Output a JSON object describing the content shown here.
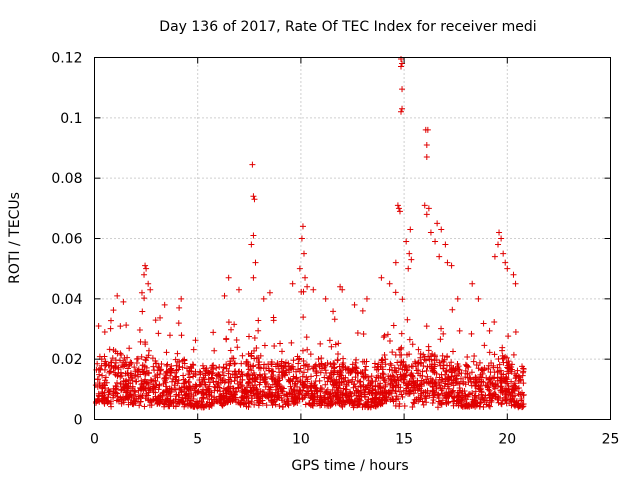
{
  "chart_data": {
    "type": "scatter",
    "title": "Day 136 of 2017, Rate Of TEC Index for receiver medi",
    "xlabel": "GPS time / hours",
    "ylabel": "ROTI / TECUs",
    "xlim": [
      0,
      25
    ],
    "ylim": [
      0,
      0.12
    ],
    "xticks": [
      0,
      5,
      10,
      15,
      20,
      25
    ],
    "yticks": [
      0,
      0.02,
      0.04,
      0.06,
      0.08,
      0.1,
      0.12
    ],
    "xtick_labels": [
      "0",
      "5",
      "10",
      "15",
      "20",
      "25"
    ],
    "ytick_labels": [
      "0",
      "0.02",
      "0.04",
      "0.06",
      "0.08",
      "0.1",
      "0.12"
    ],
    "grid": true,
    "legend": "none",
    "marker": "plus",
    "color": "#e00000",
    "series": [
      {
        "points": [
          [
            7.65,
            0.0845
          ],
          [
            7.7,
            0.074
          ],
          [
            7.75,
            0.073
          ],
          [
            7.7,
            0.061
          ],
          [
            7.6,
            0.058
          ],
          [
            7.8,
            0.052
          ],
          [
            7.7,
            0.047
          ],
          [
            10.1,
            0.064
          ],
          [
            10.05,
            0.06
          ],
          [
            10.15,
            0.055
          ],
          [
            9.95,
            0.05
          ],
          [
            10.2,
            0.047
          ],
          [
            10.3,
            0.044
          ],
          [
            14.85,
            0.1195
          ],
          [
            14.9,
            0.118
          ],
          [
            14.85,
            0.117
          ],
          [
            14.9,
            0.1095
          ],
          [
            14.9,
            0.103
          ],
          [
            14.85,
            0.102
          ],
          [
            14.7,
            0.071
          ],
          [
            14.75,
            0.07
          ],
          [
            14.8,
            0.069
          ],
          [
            15.3,
            0.063
          ],
          [
            15.1,
            0.059
          ],
          [
            15.25,
            0.055
          ],
          [
            15.35,
            0.053
          ],
          [
            14.6,
            0.052
          ],
          [
            15.2,
            0.05
          ],
          [
            16.05,
            0.096
          ],
          [
            16.15,
            0.096
          ],
          [
            16.1,
            0.091
          ],
          [
            16.1,
            0.087
          ],
          [
            16.0,
            0.071
          ],
          [
            16.2,
            0.07
          ],
          [
            16.1,
            0.068
          ],
          [
            16.3,
            0.062
          ],
          [
            16.6,
            0.065
          ],
          [
            16.8,
            0.063
          ],
          [
            16.5,
            0.059
          ],
          [
            17.0,
            0.058
          ],
          [
            16.7,
            0.054
          ],
          [
            17.1,
            0.052
          ],
          [
            17.3,
            0.051
          ],
          [
            19.6,
            0.062
          ],
          [
            19.7,
            0.06
          ],
          [
            19.55,
            0.058
          ],
          [
            19.8,
            0.055
          ],
          [
            19.4,
            0.054
          ],
          [
            19.9,
            0.052
          ],
          [
            20.0,
            0.05
          ],
          [
            20.3,
            0.048
          ],
          [
            20.4,
            0.045
          ],
          [
            2.45,
            0.051
          ],
          [
            2.5,
            0.05
          ],
          [
            2.4,
            0.048
          ],
          [
            2.6,
            0.045
          ],
          [
            2.7,
            0.043
          ],
          [
            2.3,
            0.042
          ],
          [
            1.1,
            0.041
          ],
          [
            1.4,
            0.039
          ],
          [
            4.2,
            0.04
          ],
          [
            4.1,
            0.037
          ],
          [
            3.4,
            0.038
          ],
          [
            6.5,
            0.047
          ],
          [
            6.3,
            0.041
          ],
          [
            7.0,
            0.043
          ],
          [
            8.2,
            0.04
          ],
          [
            8.5,
            0.042
          ],
          [
            9.6,
            0.045
          ],
          [
            10.6,
            0.043
          ],
          [
            11.2,
            0.04
          ],
          [
            11.9,
            0.044
          ],
          [
            12.0,
            0.043
          ],
          [
            13.2,
            0.04
          ],
          [
            13.9,
            0.047
          ],
          [
            14.3,
            0.045
          ],
          [
            12.6,
            0.038
          ],
          [
            13.0,
            0.036
          ],
          [
            18.3,
            0.045
          ],
          [
            18.6,
            0.04
          ],
          [
            17.6,
            0.04
          ],
          [
            0.2,
            0.031
          ],
          [
            0.5,
            0.029
          ]
        ]
      }
    ]
  }
}
